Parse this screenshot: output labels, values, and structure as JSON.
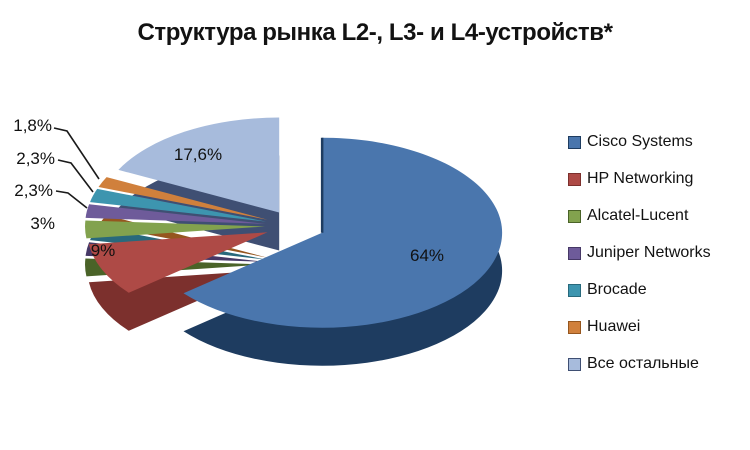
{
  "title": "Структура рынка L2-, L3- и L4-устройств*",
  "chart_data": {
    "type": "pie",
    "style": "3d-exploded",
    "title": "Структура рынка L2-, L3- и L4-устройств*",
    "unit": "%",
    "legend_position": "right",
    "total": 100,
    "slices": [
      {
        "id": "cisco-systems",
        "label": "Cisco Systems",
        "value": 64,
        "display": "64%",
        "color": "#4A76AD",
        "side": "#1E3C60"
      },
      {
        "id": "hp-networking",
        "label": "HP Networking",
        "value": 9,
        "display": "9%",
        "color": "#AE4A46",
        "side": "#7C302D"
      },
      {
        "id": "alcatel-lucent",
        "label": "Alcatel-Lucent",
        "value": 3,
        "display": "3%",
        "color": "#82A24E",
        "side": "#4A6328"
      },
      {
        "id": "juniper-networks",
        "label": "Juniper Networks",
        "value": 2.3,
        "display": "2,3%",
        "color": "#6E5B9A",
        "side": "#463866"
      },
      {
        "id": "brocade",
        "label": "Brocade",
        "value": 2.3,
        "display": "2,3%",
        "color": "#3D95AF",
        "side": "#28697C"
      },
      {
        "id": "huawei",
        "label": "Huawei",
        "value": 1.8,
        "display": "1,8%",
        "color": "#D0803C",
        "side": "#95561F"
      },
      {
        "id": "vse-ostalnye",
        "label": "Все остальные",
        "value": 17.6,
        "display": "17,6%",
        "color": "#A7BBDC",
        "side": "#3F4F73"
      }
    ],
    "text_color": "#111111"
  }
}
